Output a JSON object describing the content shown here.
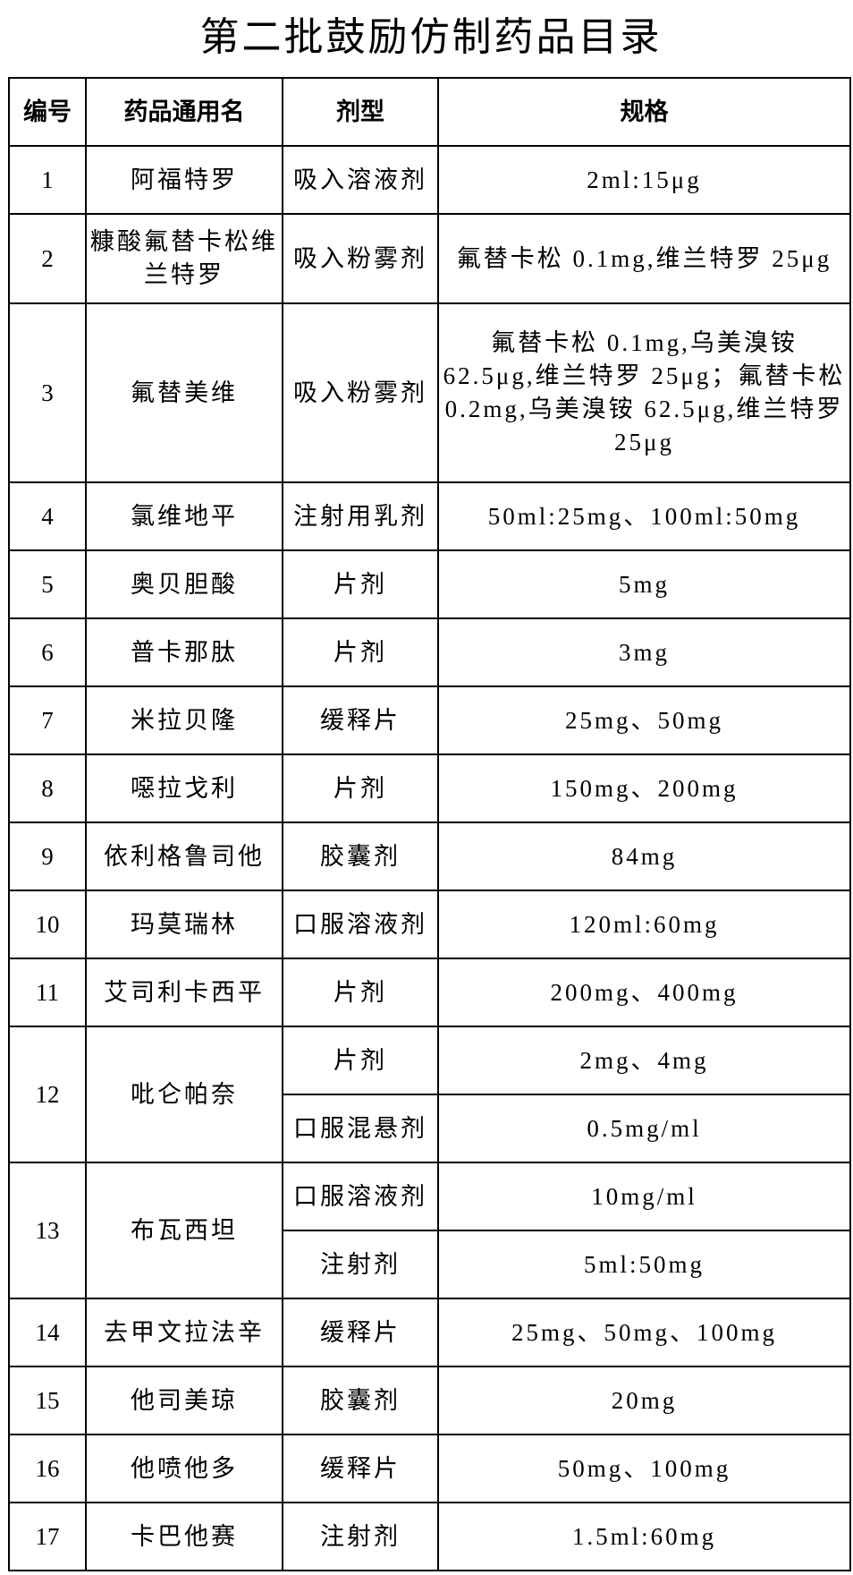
{
  "title": "第二批鼓励仿制药品目录",
  "headers": [
    "编号",
    "药品通用名",
    "剂型",
    "规格"
  ],
  "rows": [
    {
      "no": "1",
      "name": "阿福特罗",
      "forms": [
        {
          "form": "吸入溶液剂",
          "spec": "2ml:15μg"
        }
      ]
    },
    {
      "no": "2",
      "name": "糠酸氟替卡松维兰特罗",
      "forms": [
        {
          "form": "吸入粉雾剂",
          "spec": "氟替卡松 0.1mg,维兰特罗 25μg"
        }
      ]
    },
    {
      "no": "3",
      "name": "氟替美维",
      "forms": [
        {
          "form": "吸入粉雾剂",
          "spec": "氟替卡松 0.1mg,乌美溴铵 62.5μg,维兰特罗 25μg；氟替卡松 0.2mg,乌美溴铵 62.5μg,维兰特罗 25μg"
        }
      ]
    },
    {
      "no": "4",
      "name": "氯维地平",
      "forms": [
        {
          "form": "注射用乳剂",
          "spec": "50ml:25mg、100ml:50mg"
        }
      ]
    },
    {
      "no": "5",
      "name": "奥贝胆酸",
      "forms": [
        {
          "form": "片剂",
          "spec": "5mg"
        }
      ]
    },
    {
      "no": "6",
      "name": "普卡那肽",
      "forms": [
        {
          "form": "片剂",
          "spec": "3mg"
        }
      ]
    },
    {
      "no": "7",
      "name": "米拉贝隆",
      "forms": [
        {
          "form": "缓释片",
          "spec": "25mg、50mg"
        }
      ]
    },
    {
      "no": "8",
      "name": "噁拉戈利",
      "forms": [
        {
          "form": "片剂",
          "spec": "150mg、200mg"
        }
      ]
    },
    {
      "no": "9",
      "name": "依利格鲁司他",
      "forms": [
        {
          "form": "胶囊剂",
          "spec": "84mg"
        }
      ]
    },
    {
      "no": "10",
      "name": "玛莫瑞林",
      "forms": [
        {
          "form": "口服溶液剂",
          "spec": "120ml:60mg"
        }
      ]
    },
    {
      "no": "11",
      "name": "艾司利卡西平",
      "forms": [
        {
          "form": "片剂",
          "spec": "200mg、400mg"
        }
      ]
    },
    {
      "no": "12",
      "name": "吡仑帕奈",
      "forms": [
        {
          "form": "片剂",
          "spec": "2mg、4mg"
        },
        {
          "form": "口服混悬剂",
          "spec": "0.5mg/ml"
        }
      ]
    },
    {
      "no": "13",
      "name": "布瓦西坦",
      "forms": [
        {
          "form": "口服溶液剂",
          "spec": "10mg/ml"
        },
        {
          "form": "注射剂",
          "spec": "5ml:50mg"
        }
      ]
    },
    {
      "no": "14",
      "name": "去甲文拉法辛",
      "forms": [
        {
          "form": "缓释片",
          "spec": "25mg、50mg、100mg"
        }
      ]
    },
    {
      "no": "15",
      "name": "他司美琼",
      "forms": [
        {
          "form": "胶囊剂",
          "spec": "20mg"
        }
      ]
    },
    {
      "no": "16",
      "name": "他喷他多",
      "forms": [
        {
          "form": "缓释片",
          "spec": "50mg、100mg"
        }
      ]
    },
    {
      "no": "17",
      "name": "卡巴他赛",
      "forms": [
        {
          "form": "注射剂",
          "spec": "1.5ml:60mg"
        }
      ]
    }
  ]
}
